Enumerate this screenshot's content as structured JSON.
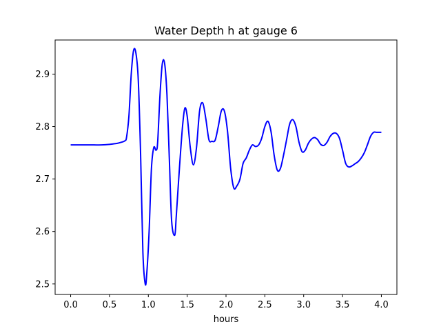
{
  "chart_data": {
    "type": "line",
    "title": "Water Depth h at gauge 6",
    "xlabel": "hours",
    "ylabel": "",
    "xlim": [
      -0.2,
      4.2
    ],
    "ylim": [
      2.48,
      2.965
    ],
    "xticks": [
      0.0,
      0.5,
      1.0,
      1.5,
      2.0,
      2.5,
      3.0,
      3.5,
      4.0
    ],
    "xtick_labels": [
      "0.0",
      "0.5",
      "1.0",
      "1.5",
      "2.0",
      "2.5",
      "3.0",
      "3.5",
      "4.0"
    ],
    "yticks": [
      2.5,
      2.6,
      2.7,
      2.8,
      2.9
    ],
    "ytick_labels": [
      "2.5",
      "2.6",
      "2.7",
      "2.8",
      "2.9"
    ],
    "grid": false,
    "series": [
      {
        "color": "#0000ff",
        "x": [
          0.0,
          0.1,
          0.2,
          0.3,
          0.4,
          0.5,
          0.55,
          0.6,
          0.65,
          0.7,
          0.72,
          0.75,
          0.78,
          0.81,
          0.84,
          0.87,
          0.9,
          0.93,
          0.96,
          0.98,
          1.01,
          1.04,
          1.07,
          1.1,
          1.12,
          1.15,
          1.18,
          1.21,
          1.24,
          1.27,
          1.3,
          1.34,
          1.36,
          1.4,
          1.44,
          1.47,
          1.5,
          1.54,
          1.58,
          1.62,
          1.66,
          1.7,
          1.74,
          1.78,
          1.82,
          1.86,
          1.9,
          1.94,
          1.98,
          2.02,
          2.06,
          2.1,
          2.14,
          2.18,
          2.22,
          2.26,
          2.3,
          2.34,
          2.38,
          2.42,
          2.46,
          2.5,
          2.54,
          2.58,
          2.62,
          2.66,
          2.7,
          2.74,
          2.78,
          2.82,
          2.86,
          2.9,
          2.94,
          2.98,
          3.02,
          3.06,
          3.1,
          3.14,
          3.18,
          3.22,
          3.26,
          3.3,
          3.34,
          3.38,
          3.42,
          3.46,
          3.5,
          3.54,
          3.58,
          3.62,
          3.66,
          3.7,
          3.74,
          3.78,
          3.82,
          3.86,
          3.9,
          3.94,
          3.98,
          4.0
        ],
        "y": [
          2.765,
          2.765,
          2.765,
          2.765,
          2.765,
          2.766,
          2.767,
          2.768,
          2.77,
          2.773,
          2.78,
          2.82,
          2.9,
          2.945,
          2.94,
          2.89,
          2.75,
          2.56,
          2.5,
          2.52,
          2.6,
          2.72,
          2.76,
          2.755,
          2.77,
          2.86,
          2.92,
          2.92,
          2.86,
          2.74,
          2.62,
          2.593,
          2.63,
          2.72,
          2.8,
          2.835,
          2.82,
          2.76,
          2.727,
          2.76,
          2.83,
          2.845,
          2.815,
          2.775,
          2.772,
          2.774,
          2.8,
          2.83,
          2.829,
          2.79,
          2.72,
          2.683,
          2.687,
          2.7,
          2.73,
          2.74,
          2.755,
          2.765,
          2.762,
          2.765,
          2.778,
          2.8,
          2.81,
          2.79,
          2.745,
          2.717,
          2.72,
          2.745,
          2.775,
          2.805,
          2.813,
          2.8,
          2.77,
          2.752,
          2.755,
          2.768,
          2.776,
          2.779,
          2.775,
          2.766,
          2.764,
          2.77,
          2.781,
          2.787,
          2.787,
          2.778,
          2.755,
          2.73,
          2.723,
          2.725,
          2.729,
          2.733,
          2.74,
          2.75,
          2.765,
          2.781,
          2.789,
          2.789,
          2.789,
          2.789
        ]
      }
    ]
  }
}
